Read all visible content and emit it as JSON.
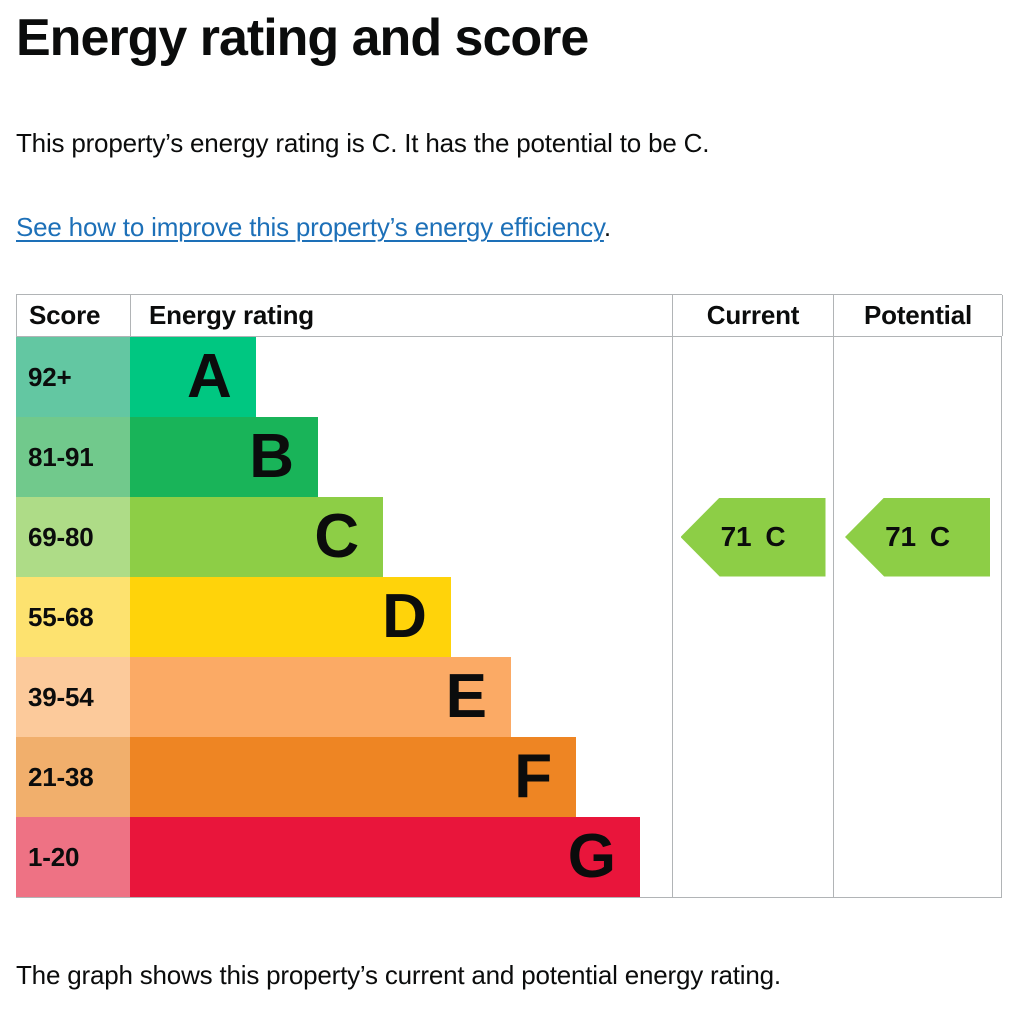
{
  "page": {
    "title": "Energy rating and score",
    "summary": "This property’s energy rating is C. It has the potential to be C.",
    "improve_link": "See how to improve this property’s energy efficiency",
    "improve_link_suffix": ".",
    "footer": "The graph shows this property’s current and potential energy rating."
  },
  "colors": {
    "text": "#0b0c0c",
    "link": "#1d70b8",
    "table_border": "#b1b4b6"
  },
  "chart_data": {
    "type": "bar",
    "title": "Energy rating and score",
    "columns": [
      "Score",
      "Energy rating",
      "Current",
      "Potential"
    ],
    "legend_position": "none",
    "grid": false,
    "bands": [
      {
        "letter": "A",
        "score": "92+",
        "bar_color": "#00c781",
        "score_color": "#63c7a2",
        "width_pct": "23.2%"
      },
      {
        "letter": "B",
        "score": "81-91",
        "bar_color": "#19b459",
        "score_color": "#71c98c",
        "width_pct": "34.7%"
      },
      {
        "letter": "C",
        "score": "69-80",
        "bar_color": "#8dce46",
        "score_color": "#aedc87",
        "width_pct": "46.7%"
      },
      {
        "letter": "D",
        "score": "55-68",
        "bar_color": "#ffd30a",
        "score_color": "#fde26f",
        "width_pct": "59.2%"
      },
      {
        "letter": "E",
        "score": "39-54",
        "bar_color": "#fbaa65",
        "score_color": "#fcca9b",
        "width_pct": "70.3%"
      },
      {
        "letter": "F",
        "score": "21-38",
        "bar_color": "#ee8523",
        "score_color": "#f1af6c",
        "width_pct": "82.3%"
      },
      {
        "letter": "G",
        "score": "1-20",
        "bar_color": "#e9153b",
        "score_color": "#ee7284",
        "width_pct": "94.1%"
      }
    ],
    "current": {
      "value": "71",
      "letter": "C",
      "row_index": 2,
      "color": "#8dce46"
    },
    "potential": {
      "value": "71",
      "letter": "C",
      "row_index": 2,
      "color": "#8dce46"
    }
  }
}
